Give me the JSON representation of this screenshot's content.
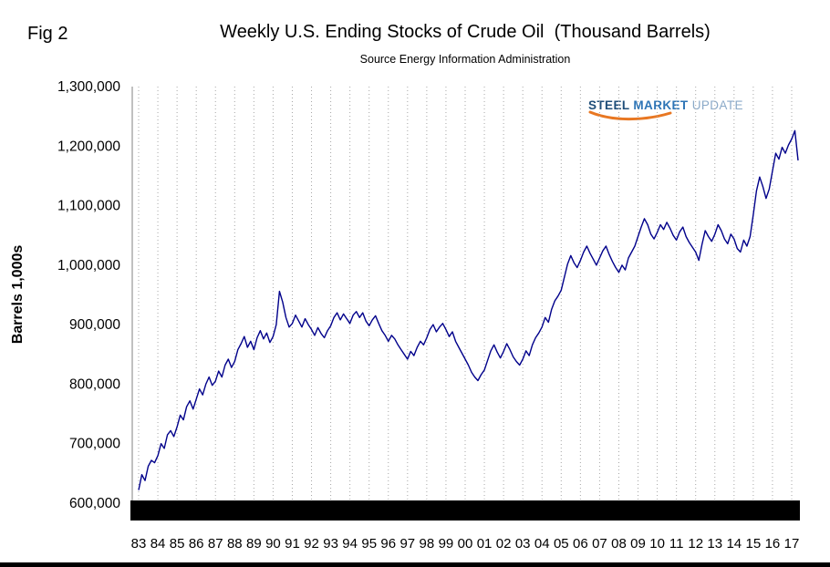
{
  "figure": {
    "fig_label": "Fig 2",
    "title": "Weekly U.S. Ending Stocks of Crude Oil  (Thousand Barrels)",
    "subtitle": "Source Energy Information Administration"
  },
  "logo": {
    "steel": "STEEL",
    "market": " MARKET",
    "update": " UPDATE",
    "color_dark_blue": "#1f4e79",
    "color_blue": "#2e75b6",
    "color_light_blue": "#8aa9c8",
    "color_orange": "#e87722"
  },
  "chart_data": {
    "type": "line",
    "title": "Weekly U.S. Ending Stocks of Crude Oil (Thousand Barrels)",
    "subtitle": "Source Energy Information Administration",
    "xlabel": "",
    "ylabel": "Barrels 1,000s",
    "ylim": [
      600000,
      1300000
    ],
    "ytick_interval": 100000,
    "grid": "vertical-dotted",
    "legend": "none",
    "line_color": "#00008b",
    "baseline_bar_color": "#000000",
    "yticks": [
      {
        "value": 600000,
        "label": "600,000"
      },
      {
        "value": 700000,
        "label": "700,000"
      },
      {
        "value": 800000,
        "label": "800,000"
      },
      {
        "value": 900000,
        "label": "900,000"
      },
      {
        "value": 1000000,
        "label": "1,000,000"
      },
      {
        "value": 1100000,
        "label": "1,100,000"
      },
      {
        "value": 1200000,
        "label": "1,200,000"
      },
      {
        "value": 1300000,
        "label": "1,300,000"
      }
    ],
    "x_tick_labels": [
      "83",
      "84",
      "85",
      "86",
      "87",
      "88",
      "89",
      "90",
      "91",
      "92",
      "93",
      "94",
      "95",
      "96",
      "97",
      "98",
      "99",
      "00",
      "01",
      "02",
      "03",
      "04",
      "05",
      "06",
      "07",
      "08",
      "09",
      "10",
      "11",
      "12",
      "13",
      "14",
      "15",
      "16",
      "17"
    ],
    "series": [
      {
        "name": "Weekly U.S. Ending Stocks of Crude Oil",
        "x_start_year": 1983,
        "points_per_year": 6,
        "values": [
          622000,
          648000,
          638000,
          662000,
          672000,
          668000,
          680000,
          700000,
          692000,
          715000,
          722000,
          712000,
          728000,
          748000,
          740000,
          762000,
          772000,
          758000,
          775000,
          792000,
          782000,
          800000,
          812000,
          798000,
          805000,
          822000,
          812000,
          832000,
          842000,
          828000,
          838000,
          858000,
          868000,
          880000,
          862000,
          872000,
          858000,
          878000,
          890000,
          876000,
          886000,
          870000,
          880000,
          900000,
          956000,
          938000,
          912000,
          896000,
          902000,
          916000,
          906000,
          896000,
          910000,
          900000,
          892000,
          882000,
          895000,
          885000,
          878000,
          890000,
          898000,
          912000,
          920000,
          908000,
          918000,
          910000,
          902000,
          916000,
          922000,
          912000,
          920000,
          906000,
          898000,
          908000,
          915000,
          902000,
          890000,
          882000,
          872000,
          882000,
          876000,
          866000,
          858000,
          850000,
          842000,
          855000,
          848000,
          862000,
          872000,
          866000,
          878000,
          892000,
          900000,
          888000,
          896000,
          902000,
          892000,
          880000,
          888000,
          872000,
          862000,
          852000,
          842000,
          832000,
          820000,
          812000,
          806000,
          816000,
          824000,
          840000,
          856000,
          866000,
          854000,
          844000,
          855000,
          868000,
          858000,
          846000,
          838000,
          832000,
          842000,
          856000,
          848000,
          866000,
          878000,
          886000,
          896000,
          912000,
          904000,
          926000,
          940000,
          948000,
          958000,
          980000,
          1002000,
          1016000,
          1004000,
          996000,
          1008000,
          1022000,
          1032000,
          1020000,
          1010000,
          1000000,
          1012000,
          1024000,
          1032000,
          1018000,
          1006000,
          996000,
          988000,
          1000000,
          992000,
          1012000,
          1022000,
          1032000,
          1048000,
          1064000,
          1078000,
          1068000,
          1052000,
          1044000,
          1055000,
          1068000,
          1060000,
          1072000,
          1062000,
          1050000,
          1042000,
          1056000,
          1064000,
          1048000,
          1038000,
          1030000,
          1022000,
          1008000,
          1035000,
          1058000,
          1048000,
          1040000,
          1052000,
          1068000,
          1058000,
          1044000,
          1036000,
          1052000,
          1044000,
          1028000,
          1022000,
          1042000,
          1032000,
          1048000,
          1085000,
          1125000,
          1148000,
          1132000,
          1112000,
          1128000,
          1158000,
          1188000,
          1178000,
          1198000,
          1188000,
          1202000,
          1212000,
          1226000,
          1176000
        ]
      }
    ]
  }
}
